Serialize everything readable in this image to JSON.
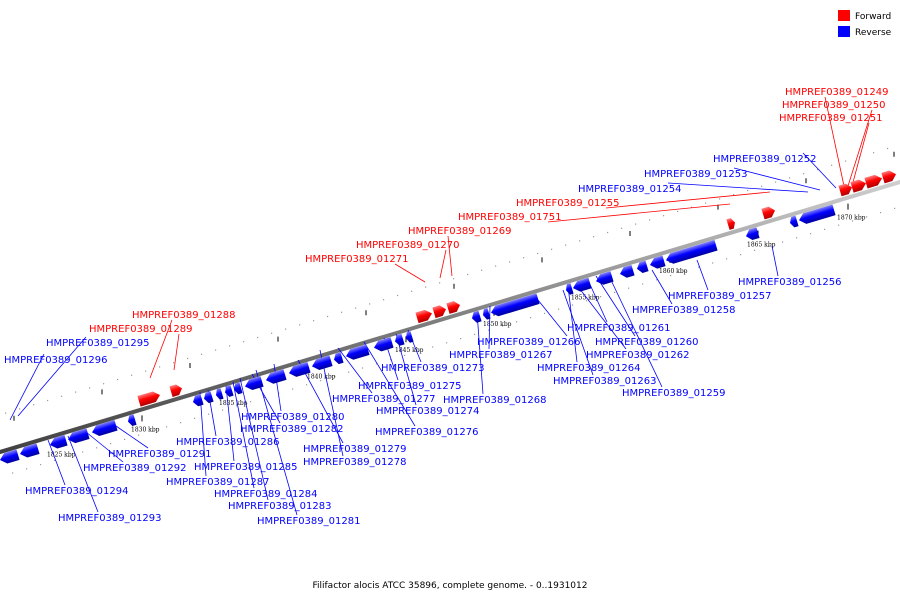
{
  "caption": "Filifactor alocis ATCC 35896, complete genome. - 0..1931012",
  "colors": {
    "forward": "#ff0000",
    "reverse": "#0000ff",
    "axis": "#808080"
  },
  "legend": [
    {
      "label": "Forward",
      "color": "#ff0000"
    },
    {
      "label": "Reverse",
      "color": "#0000ff"
    }
  ],
  "tick_labels": [
    "1825 kbp",
    "1830 kbp",
    "1835 kbp",
    "1840 kbp",
    "1845 kbp",
    "1850 kbp",
    "1855 kbp",
    "1860 kbp",
    "1865 kbp",
    "1870 kbp"
  ],
  "forward_genes": [
    "HMPREF0389_01249",
    "HMPREF0389_01250",
    "HMPREF0389_01251",
    "HMPREF0389_01255",
    "HMPREF0389_01751",
    "HMPREF0389_01269",
    "HMPREF0389_01270",
    "HMPREF0389_01271",
    "HMPREF0389_01288",
    "HMPREF0389_01289"
  ],
  "reverse_genes": [
    "HMPREF0389_01252",
    "HMPREF0389_01253",
    "HMPREF0389_01254",
    "HMPREF0389_01256",
    "HMPREF0389_01257",
    "HMPREF0389_01258",
    "HMPREF0389_01259",
    "HMPREF0389_01260",
    "HMPREF0389_01261",
    "HMPREF0389_01262",
    "HMPREF0389_01263",
    "HMPREF0389_01264",
    "HMPREF0389_01266",
    "HMPREF0389_01267",
    "HMPREF0389_01268",
    "HMPREF0389_01273",
    "HMPREF0389_01274",
    "HMPREF0389_01275",
    "HMPREF0389_01276",
    "HMPREF0389_01277",
    "HMPREF0389_01278",
    "HMPREF0389_01279",
    "HMPREF0389_01280",
    "HMPREF0389_01281",
    "HMPREF0389_01282",
    "HMPREF0389_01283",
    "HMPREF0389_01284",
    "HMPREF0389_01285",
    "HMPREF0389_01286",
    "HMPREF0389_01287",
    "HMPREF0389_01291",
    "HMPREF0389_01292",
    "HMPREF0389_01293",
    "HMPREF0389_01294",
    "HMPREF0389_01295",
    "HMPREF0389_01296"
  ]
}
